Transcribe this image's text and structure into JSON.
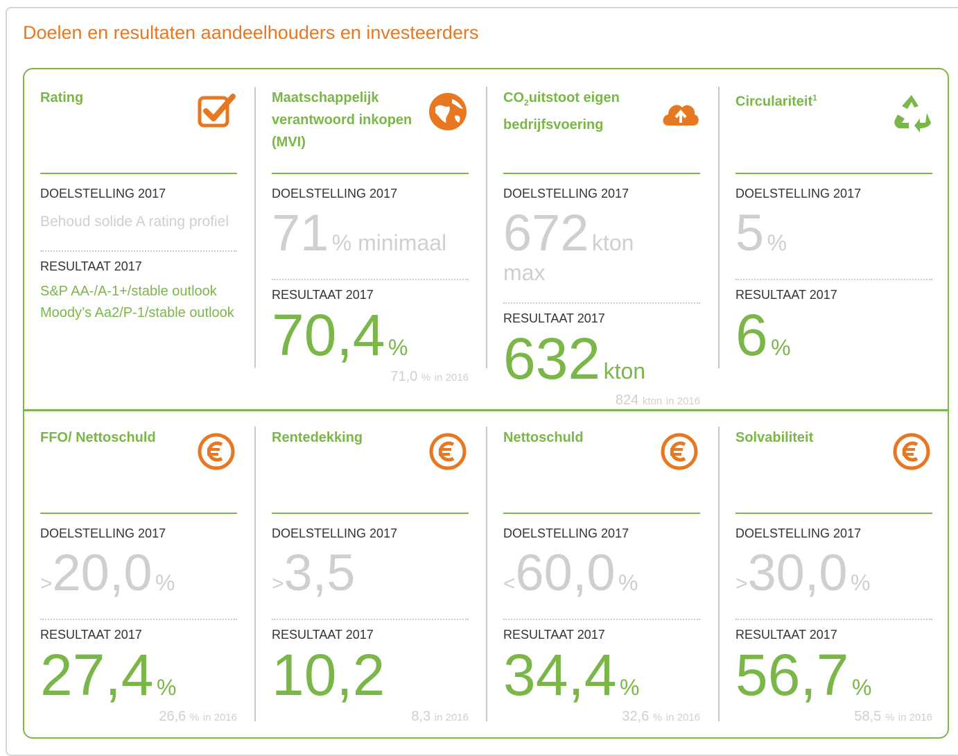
{
  "title": "Doelen en resultaten aandeelhouders en investeerders",
  "cards": [
    {
      "title": "Rating",
      "target_label": "DOELSTELLING 2017",
      "target": {
        "text": "Behoud solide A rating profiel"
      },
      "result_label": "RESULTAAT 2017",
      "result": {
        "lines": [
          "S&P AA-/A-1+/stable outlook",
          "Moody’s Aa2/P-1/stable outlook"
        ]
      }
    },
    {
      "title": "Maatschappelijk verantwoord inkopen (MVI)",
      "target_label": "DOELSTELLING 2017",
      "target": {
        "value": "71",
        "unit": "% minimaal"
      },
      "result_label": "RESULTAAT 2017",
      "result": {
        "value": "70,4",
        "unit": "%"
      },
      "prior": {
        "value": "71,0",
        "unit": "%",
        "suffix": "in 2016"
      }
    },
    {
      "title": "CO",
      "title_sub": "2",
      "title_after": "uitstoot eigen bedrijfsvoering",
      "target_label": "DOELSTELLING 2017",
      "target": {
        "value": "672",
        "unit": "kton",
        "note": "max"
      },
      "result_label": "RESULTAAT 2017",
      "result": {
        "value": "632",
        "unit": "kton"
      },
      "prior": {
        "value": "824",
        "unit": "kton",
        "suffix": "in 2016"
      }
    },
    {
      "title": "Circulariteit",
      "title_sup": "1",
      "target_label": "DOELSTELLING 2017",
      "target": {
        "value": "5",
        "unit": "%"
      },
      "result_label": "RESULTAAT 2017",
      "result": {
        "value": "6",
        "unit": "%"
      }
    },
    {
      "title": "FFO/ Nettoschuld",
      "target_label": "DOELSTELLING 2017",
      "target": {
        "prefix": ">",
        "value": "20,0",
        "unit": "%"
      },
      "result_label": "RESULTAAT 2017",
      "result": {
        "value": "27,4",
        "unit": "%"
      },
      "prior": {
        "value": "26,6",
        "unit": "%",
        "suffix": "in 2016"
      }
    },
    {
      "title": "Rentedekking",
      "target_label": "DOELSTELLING 2017",
      "target": {
        "prefix": ">",
        "value": "3,5"
      },
      "result_label": "RESULTAAT 2017",
      "result": {
        "value": "10,2"
      },
      "prior": {
        "value": "8,3",
        "suffix": "in 2016"
      }
    },
    {
      "title": "Nettoschuld",
      "target_label": "DOELSTELLING 2017",
      "target": {
        "prefix": "<",
        "value": "60,0",
        "unit": "%"
      },
      "result_label": "RESULTAAT 2017",
      "result": {
        "value": "34,4",
        "unit": "%"
      },
      "prior": {
        "value": "32,6",
        "unit": "%",
        "suffix": "in 2016"
      }
    },
    {
      "title": "Solvabiliteit",
      "target_label": "DOELSTELLING 2017",
      "target": {
        "prefix": ">",
        "value": "30,0",
        "unit": "%"
      },
      "result_label": "RESULTAAT 2017",
      "result": {
        "value": "56,7",
        "unit": "%"
      },
      "prior": {
        "value": "58,5",
        "unit": "%",
        "suffix": "in 2016"
      }
    }
  ]
}
